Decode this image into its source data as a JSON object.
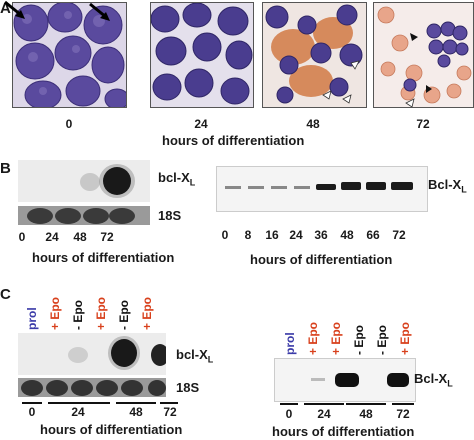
{
  "panel_a": {
    "letter": "A",
    "timepoints": [
      "0",
      "24",
      "48",
      "72"
    ],
    "axis_title": "hours of differentiation"
  },
  "panel_b": {
    "letter": "B",
    "northern": {
      "band_label": "bcl-X",
      "band_label_sub": "L",
      "control_label": "18S",
      "lanes": [
        "0",
        "24",
        "48",
        "72"
      ],
      "axis_title": "hours of differentiation"
    },
    "western": {
      "band_label": "Bcl-X",
      "band_label_sub": "L",
      "lanes": [
        "0",
        "8",
        "16",
        "24",
        "36",
        "48",
        "66",
        "72"
      ],
      "axis_title": "hours of differentiation"
    }
  },
  "panel_c": {
    "letter": "C",
    "northern": {
      "lane_labels": [
        "prol",
        "+ Epo",
        "- Epo",
        "+ Epo",
        "- Epo",
        "+ Epo"
      ],
      "band_label": "bcl-X",
      "band_label_sub": "L",
      "control_label": "18S",
      "groups": [
        "0",
        "24",
        "48",
        "72"
      ],
      "axis_title": "hours of differentiation"
    },
    "western": {
      "lane_labels": [
        "prol",
        "+ Epo",
        "- Epo",
        "+ Epo",
        "- Epo",
        "+ Epo"
      ],
      "band_label": "Bcl-X",
      "band_label_sub": "L",
      "groups": [
        "0",
        "24",
        "48",
        "72"
      ],
      "axis_title": "hours of differentiation"
    }
  },
  "colors": {
    "prol": "#3b3ba8",
    "plus_epo": "#d8401c",
    "minus_epo": "#111111",
    "cell_nucleus": "#4a3d8f",
    "cytoplasm": "#c6b4dc",
    "hemoglobinized": "#d27a45"
  }
}
